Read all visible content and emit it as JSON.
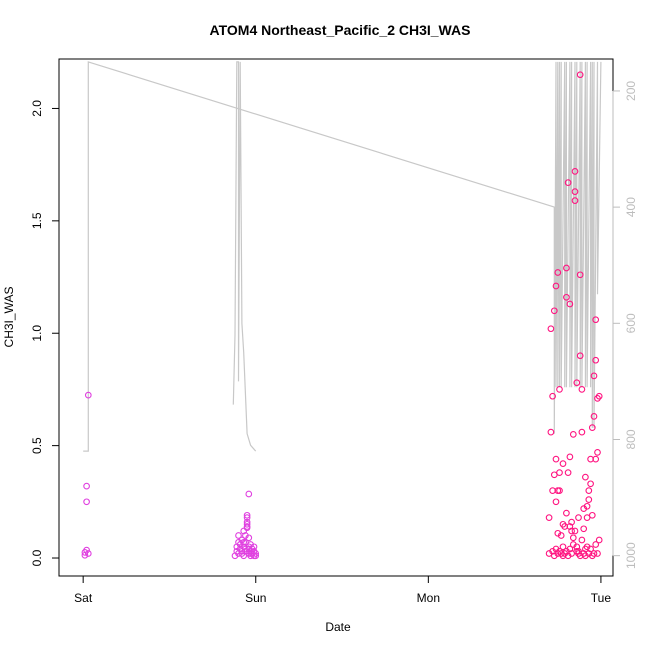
{
  "chart_data": {
    "type": "scatter",
    "title": "ATOM4 Northeast_Pacific_2 CH3I_WAS",
    "xlabel": "Date",
    "ylabel": "CH3I_WAS",
    "x_ticks": [
      "Sat",
      "Sun",
      "Mon",
      "Tue"
    ],
    "x_range_days": [
      -0.14,
      3.07
    ],
    "ylim": [
      -0.08,
      2.22
    ],
    "y_ticks": [
      "0.0",
      "0.5",
      "1.0",
      "1.5",
      "2.0"
    ],
    "y2_label": "",
    "y2_ticks": [
      "200",
      "400",
      "600",
      "800",
      "1000"
    ],
    "y2_range": [
      1035,
      145
    ],
    "colors": {
      "points_a": "#e040e0",
      "points_b": "#ff1480",
      "pressure_line": "#c8c8c8"
    },
    "series": [
      {
        "values_x_days": [
          0.01,
          0.01,
          0.02,
          0.02,
          0.02,
          0.03,
          0.03
        ],
        "values_y": [
          0.012,
          0.025,
          0.035,
          0.25,
          0.32,
          0.725,
          0.02
        ],
        "color": "#e040e0"
      },
      {
        "values_x_days": [
          0.88,
          0.89,
          0.89,
          0.9,
          0.9,
          0.9,
          0.91,
          0.91,
          0.92,
          0.92,
          0.92,
          0.93,
          0.93,
          0.93,
          0.94,
          0.94,
          0.94,
          0.95,
          0.95,
          0.95,
          0.95,
          0.96,
          0.96,
          0.96,
          0.97,
          0.97,
          0.97,
          0.98,
          0.98,
          0.99,
          0.99,
          0.99,
          1.0,
          1.0,
          0.93,
          0.94,
          0.95,
          0.95,
          0.96,
          0.96,
          0.97
        ],
        "values_y": [
          0.01,
          0.03,
          0.05,
          0.07,
          0.02,
          0.1,
          0.04,
          0.06,
          0.02,
          0.08,
          0.03,
          0.05,
          0.12,
          0.01,
          0.04,
          0.03,
          0.07,
          0.14,
          0.16,
          0.18,
          0.19,
          0.02,
          0.05,
          0.09,
          0.01,
          0.03,
          0.06,
          0.02,
          0.04,
          0.01,
          0.03,
          0.05,
          0.02,
          0.01,
          0.07,
          0.1,
          0.135,
          0.15,
          0.285,
          0.04,
          0.02
        ],
        "color": "#e040e0"
      },
      {
        "values_x_days": [
          2.7,
          2.7,
          2.71,
          2.71,
          2.72,
          2.72,
          2.72,
          2.73,
          2.73,
          2.73,
          2.74,
          2.74,
          2.74,
          2.75,
          2.75,
          2.75,
          2.76,
          2.76,
          2.76,
          2.77,
          2.77,
          2.78,
          2.78,
          2.78,
          2.79,
          2.79,
          2.8,
          2.8,
          2.8,
          2.81,
          2.81,
          2.82,
          2.82,
          2.82,
          2.83,
          2.83,
          2.84,
          2.84,
          2.85,
          2.85,
          2.85,
          2.86,
          2.86,
          2.87,
          2.87,
          2.88,
          2.88,
          2.88,
          2.89,
          2.89,
          2.9,
          2.9,
          2.91,
          2.91,
          2.92,
          2.92,
          2.93,
          2.93,
          2.94,
          2.94,
          2.95,
          2.95,
          2.96,
          2.96,
          2.97,
          2.97,
          2.97,
          2.98,
          2.98,
          2.99,
          2.99,
          2.74,
          2.75,
          2.76,
          2.78,
          2.8,
          2.81,
          2.82,
          2.83,
          2.84,
          2.85,
          2.86,
          2.87,
          2.88,
          2.89,
          2.9,
          2.91,
          2.92,
          2.93,
          2.94,
          2.95,
          2.96,
          2.97,
          2.98
        ],
        "values_y": [
          0.02,
          0.18,
          0.56,
          1.02,
          0.03,
          0.3,
          0.72,
          0.01,
          0.37,
          1.1,
          0.04,
          0.44,
          1.21,
          0.02,
          0.3,
          1.27,
          0.03,
          0.38,
          0.75,
          0.02,
          0.1,
          0.01,
          0.05,
          0.42,
          0.02,
          0.14,
          0.03,
          1.16,
          1.29,
          0.01,
          1.67,
          0.04,
          0.45,
          1.13,
          0.02,
          0.12,
          0.06,
          0.55,
          1.59,
          1.63,
          1.72,
          0.03,
          0.78,
          0.02,
          0.18,
          0.01,
          1.26,
          2.15,
          0.08,
          0.75,
          0.02,
          0.22,
          0.01,
          0.36,
          0.05,
          0.18,
          0.02,
          0.3,
          0.04,
          0.44,
          0.01,
          0.58,
          0.02,
          0.81,
          0.06,
          0.88,
          1.06,
          0.02,
          0.47,
          0.08,
          0.72,
          0.25,
          0.11,
          0.3,
          0.15,
          0.2,
          0.38,
          0.14,
          0.16,
          0.09,
          0.12,
          0.05,
          0.03,
          0.9,
          0.56,
          0.13,
          0.04,
          0.23,
          0.26,
          0.33,
          0.19,
          0.63,
          0.44,
          0.71
        ],
        "color": "#ff1480"
      }
    ],
    "pressure_line": {
      "x_days": [
        0.0,
        0.03,
        0.03,
        2.73,
        2.73,
        2.74,
        2.74,
        2.75,
        2.75,
        2.76,
        2.76,
        2.77,
        2.77,
        2.79,
        2.79,
        2.8,
        2.8,
        2.82,
        2.82,
        2.83,
        2.83,
        2.85,
        2.85,
        2.86,
        2.86,
        2.88,
        2.88,
        2.89,
        2.89,
        2.91,
        2.91,
        2.92,
        2.92,
        2.94,
        2.94,
        2.95,
        2.95,
        2.96,
        2.96,
        2.98,
        2.98,
        3.0,
        3.0
      ],
      "values_y2": [
        820,
        820,
        150,
        400,
        790,
        150,
        710,
        150,
        710,
        150,
        710,
        150,
        710,
        150,
        710,
        150,
        710,
        150,
        710,
        150,
        710,
        150,
        710,
        150,
        710,
        150,
        710,
        150,
        710,
        150,
        710,
        150,
        710,
        150,
        710,
        150,
        780,
        150,
        780,
        150,
        550,
        150,
        150
      ],
      "color": "#c8c8c8"
    },
    "pressure_line_2": {
      "x_days": [
        0.87,
        0.88,
        0.89,
        0.9,
        0.9,
        0.91,
        0.91,
        0.92,
        0.93,
        0.95,
        0.97,
        1.0
      ],
      "values_y2": [
        740,
        620,
        150,
        150,
        700,
        150,
        150,
        600,
        650,
        790,
        810,
        820
      ],
      "color": "#c8c8c8"
    }
  }
}
